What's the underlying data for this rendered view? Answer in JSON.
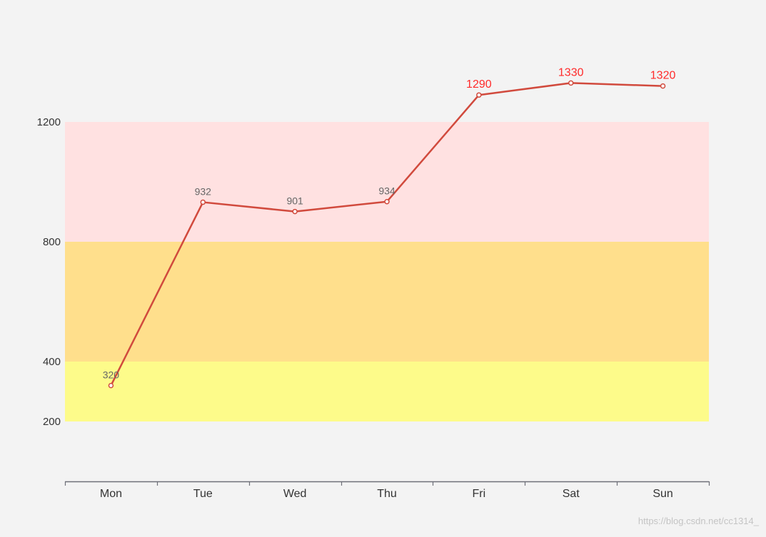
{
  "chart_data": {
    "type": "line",
    "categories": [
      "Mon",
      "Tue",
      "Wed",
      "Thu",
      "Fri",
      "Sat",
      "Sun"
    ],
    "values": [
      320,
      932,
      901,
      934,
      1290,
      1330,
      1320
    ],
    "series": [
      {
        "values": [
          320,
          932,
          901,
          934,
          1290,
          1330,
          1320
        ]
      }
    ],
    "y_ticks": [
      200,
      400,
      800,
      1200
    ],
    "y_tick_labels": [
      "200",
      "400",
      "800",
      "1200"
    ],
    "ylim": [
      0,
      1450
    ],
    "grid": false,
    "mark_areas": [
      {
        "from": 200,
        "to": 400,
        "color": "#fdfb8a"
      },
      {
        "from": 400,
        "to": 800,
        "color": "#ffdf8c"
      },
      {
        "from": 800,
        "to": 1200,
        "color": "#ffe1e1"
      }
    ],
    "line_color": "#d14a3d",
    "label_color_default": "#666666",
    "label_color_high": "#ff2a2a",
    "high_threshold": 1200,
    "axis_color": "#6e7079",
    "tick_label_color": "#333333"
  },
  "watermark": "https://blog.csdn.net/cc1314_"
}
